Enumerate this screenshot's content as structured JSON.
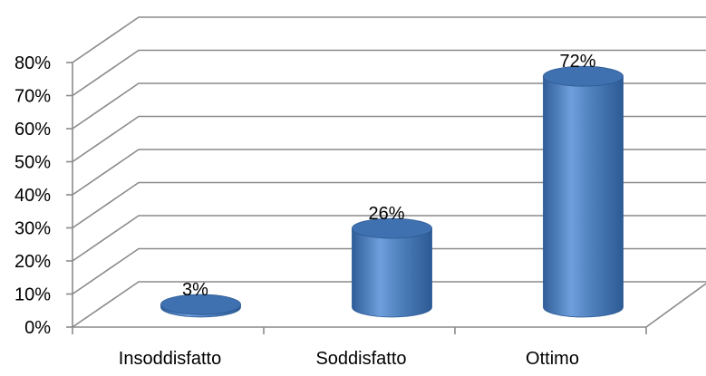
{
  "chart_data": {
    "type": "bar",
    "style": "3d-cylinder",
    "categories": [
      "Insoddisfatto",
      "Soddisfatto",
      "Ottimo"
    ],
    "values": [
      3,
      26,
      72
    ],
    "value_format": "percent",
    "ylim": [
      0,
      80
    ],
    "yticks": [
      0,
      10,
      20,
      30,
      40,
      50,
      60,
      70,
      80
    ],
    "ytick_labels": [
      "0%",
      "10%",
      "20%",
      "30%",
      "40%",
      "50%",
      "60%",
      "70%",
      "80%"
    ],
    "data_labels": [
      "3%",
      "26%",
      "72%"
    ],
    "title": "",
    "xlabel": "",
    "ylabel": "",
    "grid": true,
    "legend": "none",
    "colors": {
      "bar": "#4f81bd",
      "bar_dark": "#2c5a94",
      "bar_light": "#8fb3e3",
      "grid": "#8a8a8a"
    }
  }
}
